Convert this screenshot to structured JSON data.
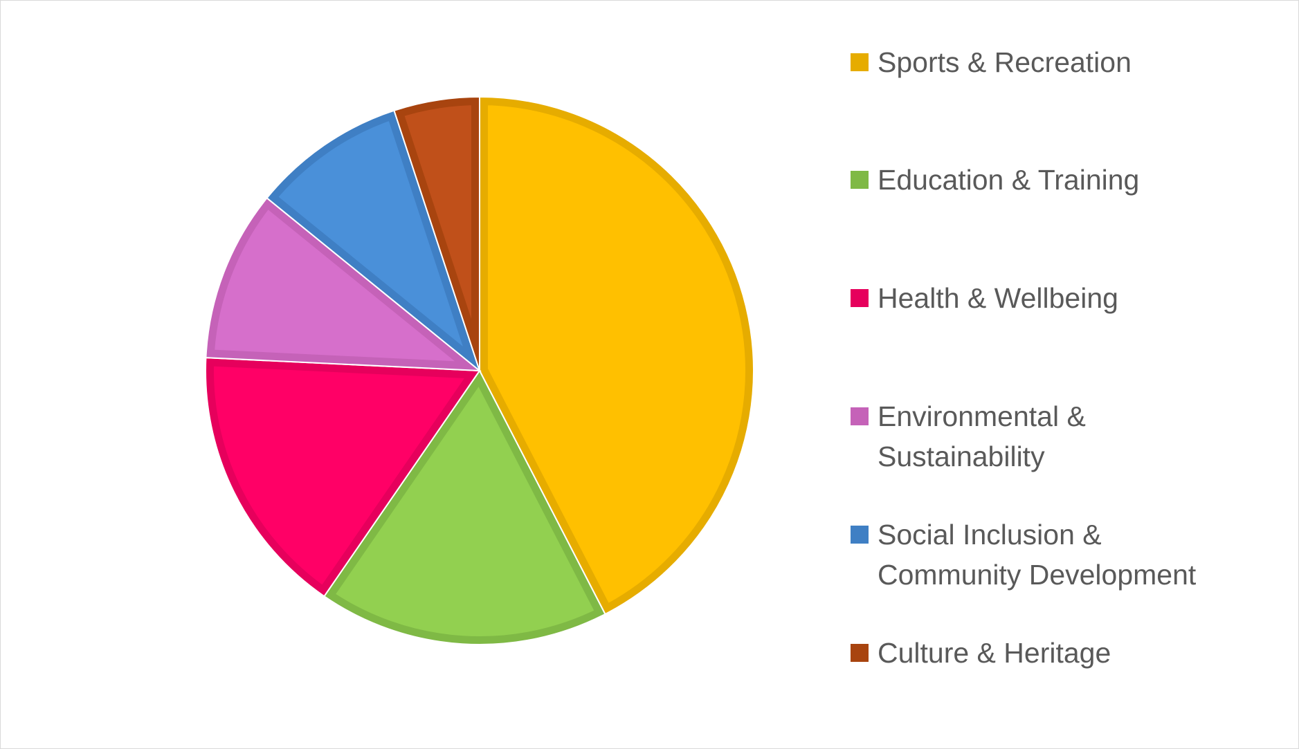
{
  "chart_data": {
    "type": "pie",
    "title": "",
    "legend_position": "right",
    "categories": [
      "Sports & Recreation",
      "Education & Training",
      "Health & Wellbeing",
      "Environmental & Sustainability",
      "Social Inclusion & Community Development",
      "Culture & Heritage"
    ],
    "values": [
      42,
      17,
      16,
      10,
      9,
      5
    ],
    "legend_lines": [
      "Sports & Recreation",
      "Education & Training",
      "Health & Wellbeing",
      "Environmental &\nSustainability",
      "Social Inclusion &\nCommunity Development",
      "Culture & Heritage"
    ],
    "colors": [
      "#FFC000",
      "#92D050",
      "#FF0066",
      "#D66FCB",
      "#4A90D9",
      "#C0501A"
    ],
    "border_colors": [
      "#E6AC00",
      "#7FB945",
      "#E6005C",
      "#C562B8",
      "#3F7FC4",
      "#A8440F"
    ],
    "legend_colors": [
      "#E6AC00",
      "#7FB945",
      "#E6005C",
      "#C562B8",
      "#3F7FC4",
      "#A8440F"
    ]
  }
}
